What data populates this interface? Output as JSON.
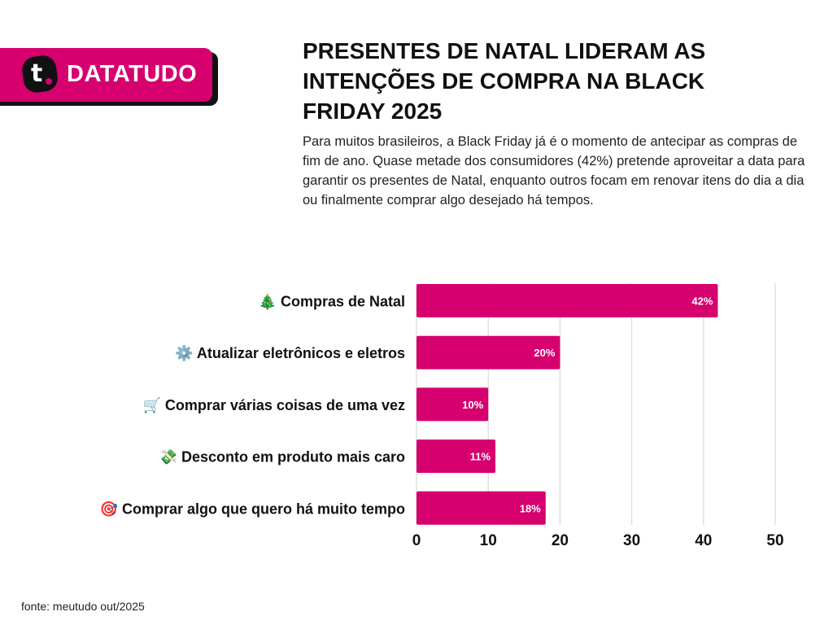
{
  "brand": {
    "name": "DATATUDO",
    "logo_letter": "t."
  },
  "header": {
    "title": "PRESENTES DE NATAL LIDERAM AS INTENÇÕES DE COMPRA NA BLACK FRIDAY 2025",
    "subtitle": "Para muitos brasileiros, a Black Friday já é o momento de antecipar as compras de fim de ano. Quase metade dos consumidores (42%) pretende aproveitar a data para garantir os presentes de Natal, enquanto outros focam em renovar itens do dia a dia ou finalmente comprar algo desejado há tempos."
  },
  "footer": {
    "source": "fonte: meutudo out/2025"
  },
  "colors": {
    "accent": "#d6006f",
    "grid": "#d9d9d9"
  },
  "chart_data": {
    "type": "bar",
    "orientation": "horizontal",
    "categories": [
      "🎄 Compras de Natal",
      "⚙️ Atualizar eletrônicos e eletros",
      "🛒 Comprar várias coisas de uma vez",
      "💸 Desconto em produto mais caro",
      "🎯 Comprar algo que quero há muito tempo"
    ],
    "values": [
      42,
      20,
      10,
      11,
      18
    ],
    "data_labels": [
      "42%",
      "20%",
      "10%",
      "11%",
      "18%"
    ],
    "xlim": [
      0,
      50
    ],
    "xticks": [
      "0",
      "10",
      "20",
      "30",
      "40",
      "50"
    ],
    "grid": true,
    "title": "",
    "xlabel": "",
    "ylabel": ""
  }
}
